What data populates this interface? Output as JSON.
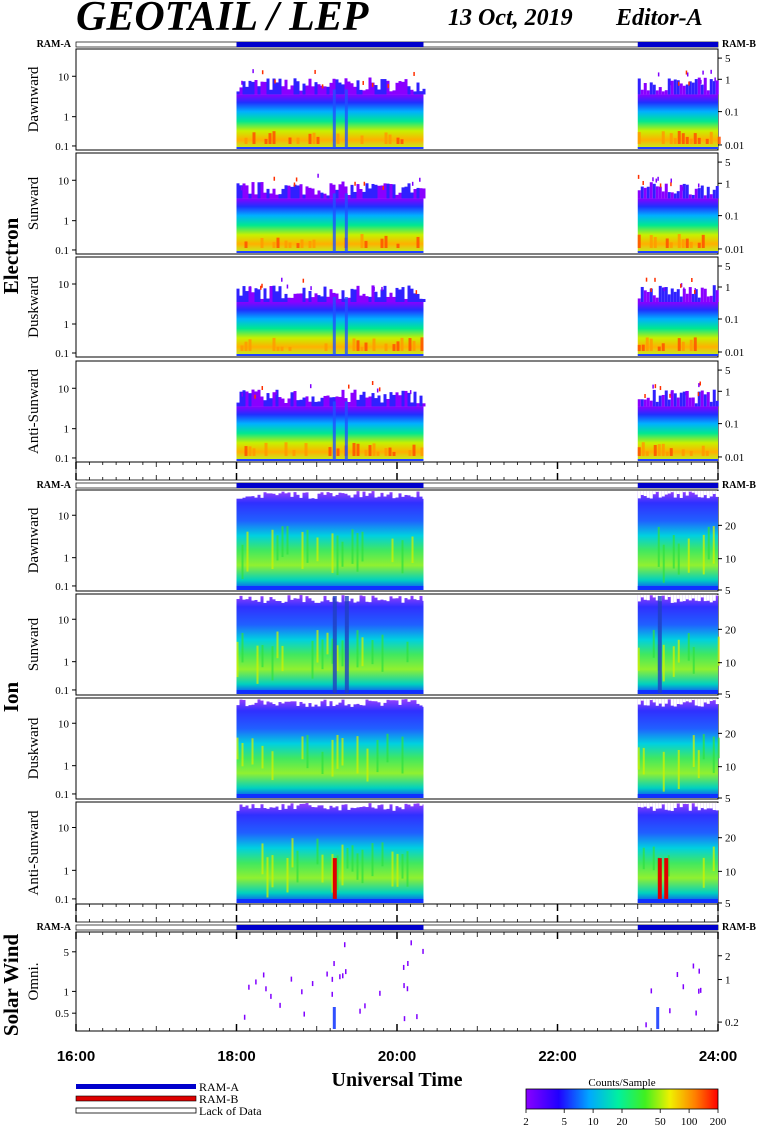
{
  "header": {
    "title": "GEOTAIL / LEP",
    "date": "13 Oct, 2019",
    "editor": "Editor-A"
  },
  "status_bar": {
    "left_label": "RAM-A",
    "right_label": "RAM-B",
    "segments": [
      {
        "start": 18.0,
        "end": 20.33,
        "mode": "RAM-A"
      },
      {
        "start": 23.0,
        "end": 24.0,
        "mode": "RAM-A"
      }
    ]
  },
  "groups": [
    {
      "name": "Electron",
      "panels": [
        "Dawnward",
        "Sunward",
        "Duskward",
        "Anti-Sunward"
      ]
    },
    {
      "name": "Ion",
      "panels": [
        "Dawnward",
        "Sunward",
        "Duskward",
        "Anti-Sunward"
      ]
    },
    {
      "name": "Solar Wind",
      "panels": [
        "Omni."
      ]
    }
  ],
  "axes": {
    "electron_left_ticks": [
      "10",
      "1",
      "0.1"
    ],
    "electron_right_ticks": [
      "5",
      "1",
      "0.1",
      "0.01"
    ],
    "ion_left_ticks": [
      "10",
      "1",
      "0.1"
    ],
    "ion_right_ticks": [
      "20",
      "10",
      "5"
    ],
    "solar_left_ticks": [
      "5",
      "1",
      "0.5"
    ],
    "solar_right_ticks": [
      "2",
      "1",
      "0.2"
    ],
    "x_ticks": [
      "16:00",
      "18:00",
      "20:00",
      "22:00",
      "24:00"
    ],
    "xlabel": "Universal Time"
  },
  "legend": {
    "ram_a": "RAM-A",
    "ram_b": "RAM-B",
    "lack": "Lack of Data",
    "ram_a_color": "#0000cc",
    "ram_b_color": "#dd0000",
    "colorbar_title": "Counts/Sample",
    "colorbar_ticks": [
      "2",
      "5",
      "10",
      "20",
      "50",
      "100",
      "200"
    ]
  },
  "chart_data": {
    "type": "heatmap",
    "x_range": [
      16,
      24
    ],
    "data_intervals": [
      [
        18.0,
        20.33
      ],
      [
        23.0,
        24.0
      ]
    ],
    "colorbar_range": [
      2,
      200
    ],
    "colorbar_scale": "log"
  }
}
